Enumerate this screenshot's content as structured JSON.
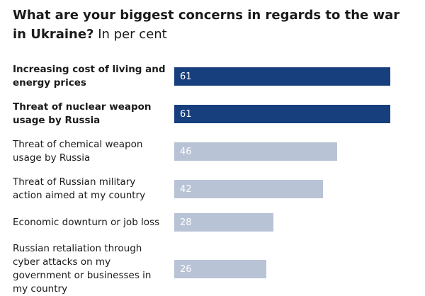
{
  "chart_data": {
    "type": "bar",
    "orientation": "horizontal",
    "title": "What are your biggest concerns in regards to the war in Ukraine?",
    "subtitle": "In per cent",
    "categories": [
      "Increasing cost of living and energy prices",
      "Threat of nuclear weapon usage by Russia",
      "Threat of chemical weapon usage by Russia",
      "Threat of Russian military action aimed at my country",
      "Economic downturn or job loss",
      "Russian retaliation through cyber attacks on my government or businesses in my country"
    ],
    "values": [
      61,
      61,
      46,
      42,
      28,
      26
    ],
    "highlight": [
      true,
      true,
      false,
      false,
      false,
      false
    ],
    "color": "#b8c3d5",
    "highlight_color": "#173f7d"
  }
}
